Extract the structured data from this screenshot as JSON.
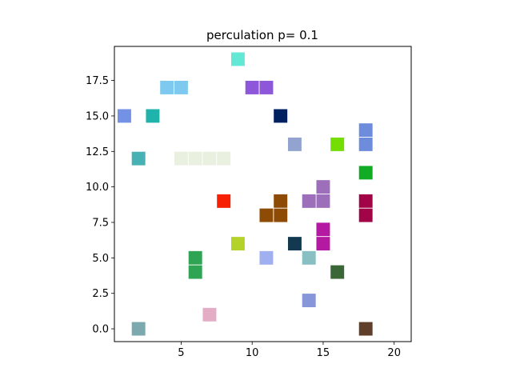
{
  "chart_data": {
    "type": "scatter",
    "title": "perculation p= 0.1",
    "xlabel": "",
    "ylabel": "",
    "xlim": [
      0.3,
      21.2
    ],
    "ylim": [
      -0.9,
      19.9
    ],
    "xticks": [
      "5",
      "10",
      "15",
      "20"
    ],
    "yticks": [
      "0.0",
      "2.5",
      "5.0",
      "7.5",
      "10.0",
      "12.5",
      "15.0",
      "17.5"
    ],
    "xtick_values": [
      5,
      10,
      15,
      20
    ],
    "ytick_values": [
      0,
      2.5,
      5,
      7.5,
      10,
      12.5,
      15,
      17.5
    ],
    "marker": "square",
    "clusters": [
      {
        "color": "#63e8d6",
        "cells": [
          [
            9,
            19
          ]
        ]
      },
      {
        "color": "#7ec9ef",
        "cells": [
          [
            4,
            17
          ],
          [
            5,
            17
          ]
        ]
      },
      {
        "color": "#8e56d8",
        "cells": [
          [
            10,
            17
          ],
          [
            11,
            17
          ]
        ]
      },
      {
        "color": "#7392e6",
        "cells": [
          [
            1,
            15
          ]
        ]
      },
      {
        "color": "#20b3ac",
        "cells": [
          [
            3,
            15
          ]
        ]
      },
      {
        "color": "#00215f",
        "cells": [
          [
            12,
            15
          ]
        ]
      },
      {
        "color": "#6d8cdb",
        "cells": [
          [
            18,
            14
          ],
          [
            18,
            13
          ]
        ]
      },
      {
        "color": "#93a3d0",
        "cells": [
          [
            13,
            13
          ]
        ]
      },
      {
        "color": "#73dd04",
        "cells": [
          [
            16,
            13
          ]
        ]
      },
      {
        "color": "#48b1b3",
        "cells": [
          [
            2,
            12
          ]
        ]
      },
      {
        "color": "#e9f0e0",
        "cells": [
          [
            5,
            12
          ],
          [
            6,
            12
          ],
          [
            7,
            12
          ],
          [
            8,
            12
          ]
        ]
      },
      {
        "color": "#10ad24",
        "cells": [
          [
            18,
            11
          ]
        ]
      },
      {
        "color": "#9d6fba",
        "cells": [
          [
            15,
            10
          ],
          [
            15,
            9
          ],
          [
            14,
            9
          ]
        ]
      },
      {
        "color": "#f72005",
        "cells": [
          [
            8,
            9
          ]
        ]
      },
      {
        "color": "#8e4b06",
        "cells": [
          [
            12,
            9
          ],
          [
            12,
            8
          ],
          [
            11,
            8
          ]
        ]
      },
      {
        "color": "#a20547",
        "cells": [
          [
            18,
            9
          ],
          [
            18,
            8
          ]
        ]
      },
      {
        "color": "#b419a2",
        "cells": [
          [
            15,
            7
          ],
          [
            15,
            6
          ]
        ]
      },
      {
        "color": "#b3d32a",
        "cells": [
          [
            9,
            6
          ]
        ]
      },
      {
        "color": "#133950",
        "cells": [
          [
            13,
            6
          ]
        ]
      },
      {
        "color": "#2fa453",
        "cells": [
          [
            6,
            5
          ],
          [
            6,
            4
          ]
        ]
      },
      {
        "color": "#a0aff0",
        "cells": [
          [
            11,
            5
          ]
        ]
      },
      {
        "color": "#88bfc2",
        "cells": [
          [
            14,
            5
          ]
        ]
      },
      {
        "color": "#3a6736",
        "cells": [
          [
            16,
            4
          ]
        ]
      },
      {
        "color": "#8796d8",
        "cells": [
          [
            14,
            2
          ]
        ]
      },
      {
        "color": "#e3adc6",
        "cells": [
          [
            7,
            1
          ]
        ]
      },
      {
        "color": "#7ba9ad",
        "cells": [
          [
            2,
            0
          ]
        ]
      },
      {
        "color": "#603f2a",
        "cells": [
          [
            18,
            0
          ]
        ]
      }
    ]
  }
}
